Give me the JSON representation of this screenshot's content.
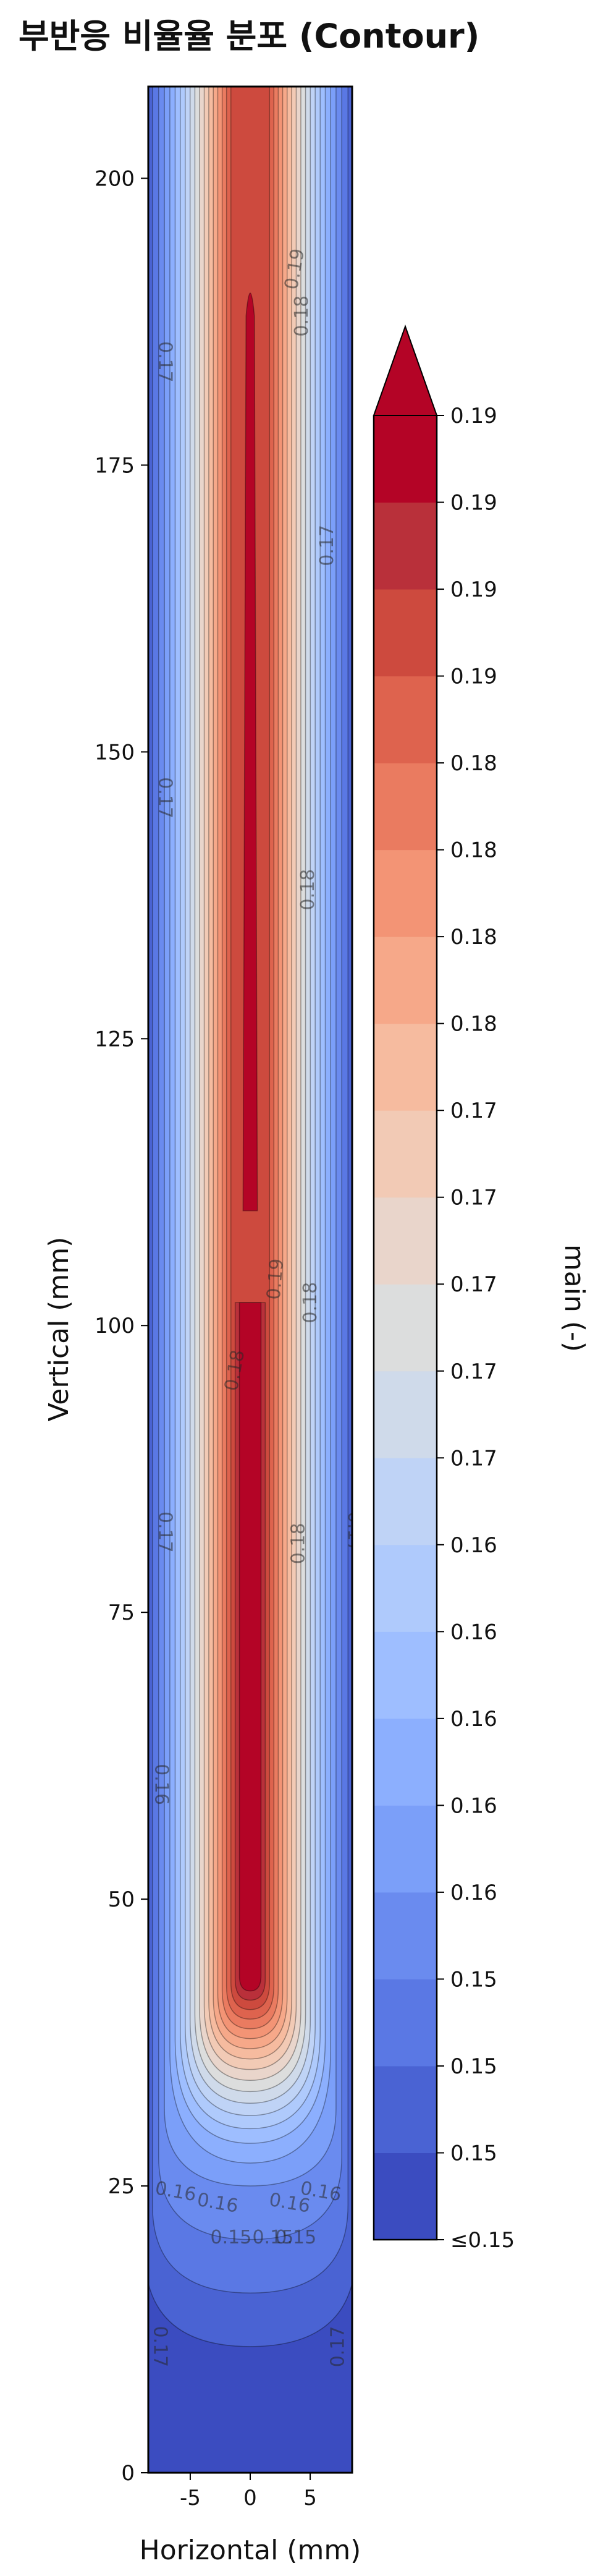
{
  "title": "부반응 비율율 분포 (Contour)",
  "chart_data": {
    "type": "contour",
    "title": "부반응 비율율 분포 (Contour)",
    "xlabel": "Horizontal (mm)",
    "ylabel": "Vertical (mm)",
    "xlim": [
      -8.5,
      8.5
    ],
    "ylim": [
      0,
      208
    ],
    "x_ticks": [
      -5,
      0,
      5
    ],
    "y_ticks": [
      0,
      25,
      50,
      75,
      100,
      125,
      150,
      175,
      200
    ],
    "colormap": "coolwarm",
    "colorbar": {
      "label": "main (-)",
      "extend": "max",
      "tick_labels": [
        "≤0.15",
        "0.15",
        "0.15",
        "0.15",
        "0.16",
        "0.16",
        "0.16",
        "0.16",
        "0.16",
        "0.17",
        "0.17",
        "0.17",
        "0.17",
        "0.17",
        "0.18",
        "0.18",
        "0.18",
        "0.18",
        "0.19",
        "0.19",
        "0.19",
        "0.19"
      ],
      "colors": [
        "#3b4cc0",
        "#4a63d3",
        "#5a78e4",
        "#6a8bef",
        "#7b9ff9",
        "#8caffe",
        "#9ebeff",
        "#afcafc",
        "#bfd3f6",
        "#cfdaea",
        "#dcdddd",
        "#e9d5cb",
        "#f2cab5",
        "#f6bb9f",
        "#f6a889",
        "#f39475",
        "#ea7b60",
        "#de634e",
        "#cd4a3e",
        "#b9303a",
        "#b40426"
      ]
    },
    "contour_labels": [
      "0.19",
      "0.18",
      "0.17",
      "0.17",
      "0.17",
      "0.18",
      "0.19",
      "0.18",
      "0.18",
      "0.17",
      "0.17",
      "0.18",
      "0.16",
      "0.16",
      "0.16",
      "0.16",
      "0.16",
      "0.15",
      "0.15",
      "0.15",
      "0.17",
      "0.17"
    ]
  }
}
